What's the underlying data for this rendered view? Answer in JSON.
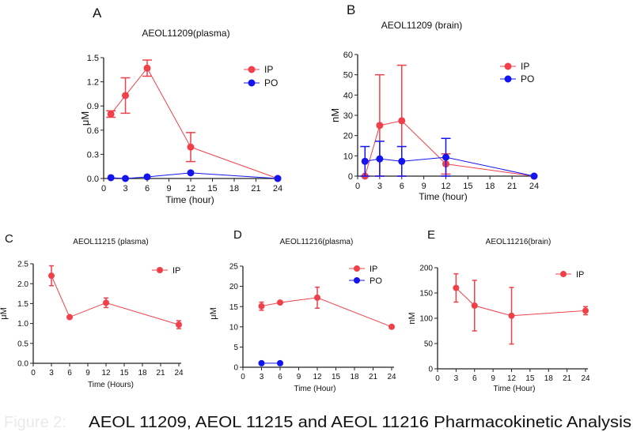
{
  "colors": {
    "IP": "#f0414a",
    "PO": "#1414f0",
    "axis": "#222222",
    "caption_faint": "#e9e9ee"
  },
  "caption": {
    "prefix": "Figure 2:",
    "text": "AEOL 11209, AEOL 11215 and AEOL 11216 Pharmacokinetic Analysis"
  },
  "chart_data": [
    {
      "panel": "A",
      "type": "line",
      "title": "AEOL11209(plasma)",
      "xlabel": "Time (hour)",
      "ylabel": "μM",
      "xlim": [
        0,
        24
      ],
      "ylim": [
        0,
        1.5
      ],
      "xticks": [
        "0",
        "3",
        "6",
        "9",
        "12",
        "15",
        "18",
        "21",
        "24"
      ],
      "yticks": [
        "0.0",
        "0.3",
        "0.6",
        "0.9",
        "1.2",
        "1.5"
      ],
      "legend": "top-right",
      "grid": false,
      "series": [
        {
          "name": "IP",
          "x": [
            1,
            3,
            6,
            12,
            24
          ],
          "y": [
            0.8,
            1.03,
            1.37,
            0.39,
            0.0
          ],
          "err": [
            0.04,
            0.22,
            0.1,
            0.18,
            0
          ]
        },
        {
          "name": "PO",
          "x": [
            1,
            3,
            6,
            12,
            24
          ],
          "y": [
            0.01,
            0.0,
            0.02,
            0.07,
            0.0
          ],
          "err": [
            0,
            0,
            0,
            0,
            0
          ]
        }
      ]
    },
    {
      "panel": "B",
      "type": "line",
      "title": "AEOL11209 (brain)",
      "xlabel": "Time (hour)",
      "ylabel": "nM",
      "xlim": [
        0,
        24
      ],
      "ylim": [
        0,
        60
      ],
      "xticks": [
        "0",
        "3",
        "6",
        "9",
        "12",
        "15",
        "18",
        "21",
        "24"
      ],
      "yticks": [
        "0",
        "10",
        "20",
        "30",
        "40",
        "50",
        "60"
      ],
      "legend": "top-right",
      "grid": false,
      "series": [
        {
          "name": "IP",
          "x": [
            1,
            3,
            6,
            12,
            24
          ],
          "y": [
            0,
            25,
            27.3,
            6,
            0
          ],
          "err": [
            0,
            25,
            27.4,
            5,
            0
          ]
        },
        {
          "name": "PO",
          "x": [
            1,
            3,
            6,
            12,
            24
          ],
          "y": [
            7.3,
            8.5,
            7.3,
            9.3,
            0
          ],
          "err": [
            7.3,
            8.7,
            7.3,
            9.3,
            0
          ]
        }
      ]
    },
    {
      "panel": "C",
      "type": "line",
      "title": "AEOL11215 (plasma)",
      "xlabel": "Time (Hours)",
      "ylabel": "μM",
      "xlim": [
        0,
        24
      ],
      "ylim": [
        0,
        2.5
      ],
      "xticks": [
        "0",
        "3",
        "6",
        "9",
        "12",
        "15",
        "18",
        "21",
        "24"
      ],
      "yticks": [
        "0.0",
        "0.5",
        "1.0",
        "1.5",
        "2.0",
        "2.5"
      ],
      "legend": "top-right",
      "grid": false,
      "series": [
        {
          "name": "IP",
          "x": [
            3,
            6,
            12,
            24
          ],
          "y": [
            2.2,
            1.16,
            1.52,
            0.97
          ],
          "err": [
            0.25,
            0.03,
            0.12,
            0.1
          ]
        }
      ]
    },
    {
      "panel": "D",
      "type": "line",
      "title": "AEOL11216(plasma)",
      "xlabel": "Time (Hour)",
      "ylabel": "μM",
      "xlim": [
        0,
        24
      ],
      "ylim": [
        0,
        25
      ],
      "xticks": [
        "0",
        "3",
        "6",
        "9",
        "12",
        "15",
        "18",
        "21",
        "24"
      ],
      "yticks": [
        "0",
        "5",
        "10",
        "15",
        "20",
        "25"
      ],
      "legend": "top-right",
      "grid": false,
      "series": [
        {
          "name": "IP",
          "x": [
            3,
            6,
            12,
            24
          ],
          "y": [
            15.1,
            16,
            17.2,
            10
          ],
          "err": [
            1,
            0.3,
            2.6,
            0.2
          ]
        },
        {
          "name": "PO",
          "x": [
            3,
            6
          ],
          "y": [
            1,
            1
          ],
          "err": [
            0,
            0
          ]
        }
      ]
    },
    {
      "panel": "E",
      "type": "line",
      "title": "AEOL11216(brain)",
      "xlabel": "Time (Hour)",
      "ylabel": "nM",
      "xlim": [
        0,
        24
      ],
      "ylim": [
        0,
        200
      ],
      "xticks": [
        "0",
        "3",
        "6",
        "9",
        "12",
        "15",
        "18",
        "21",
        "24"
      ],
      "yticks": [
        "0",
        "50",
        "100",
        "150",
        "200"
      ],
      "legend": "top-right",
      "grid": false,
      "series": [
        {
          "name": "IP",
          "x": [
            3,
            6,
            12,
            24
          ],
          "y": [
            160,
            125,
            105,
            115
          ],
          "err": [
            28,
            50,
            56,
            8
          ]
        }
      ]
    }
  ]
}
